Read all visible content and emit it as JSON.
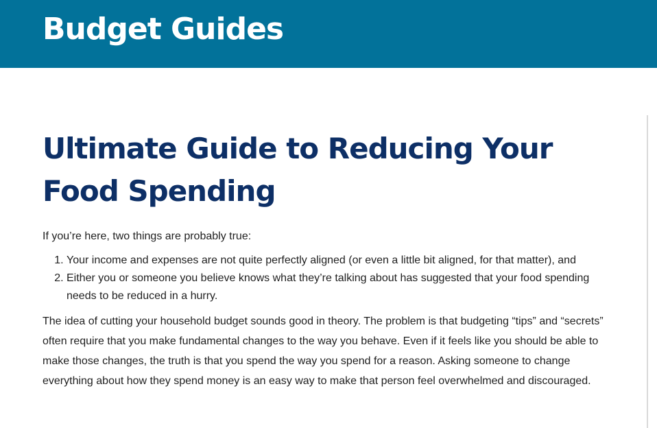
{
  "header": {
    "title": "Budget Guides",
    "background_color": "#02729a"
  },
  "article": {
    "title": "Ultimate Guide to Reducing Your Food Spending",
    "title_color": "#0d2f66",
    "intro": "If you’re here, two things are probably true:",
    "list_items": [
      "Your income and expenses are not quite perfectly aligned (or even a little bit aligned, for that matter), and",
      "Either you or someone you believe knows what they’re talking about has suggested that your food spending needs to be reduced in a hurry."
    ],
    "paragraph": "The idea of cutting your household budget sounds good in theory. The problem is that budgeting “tips” and “secrets” often require that you make fundamental changes to the way you behave. Even if it feels like you should be able to make those changes, the truth is that you spend the way you spend for a reason. Asking someone to change everything about how they spend money is an easy way to make that person feel overwhelmed and discouraged."
  }
}
